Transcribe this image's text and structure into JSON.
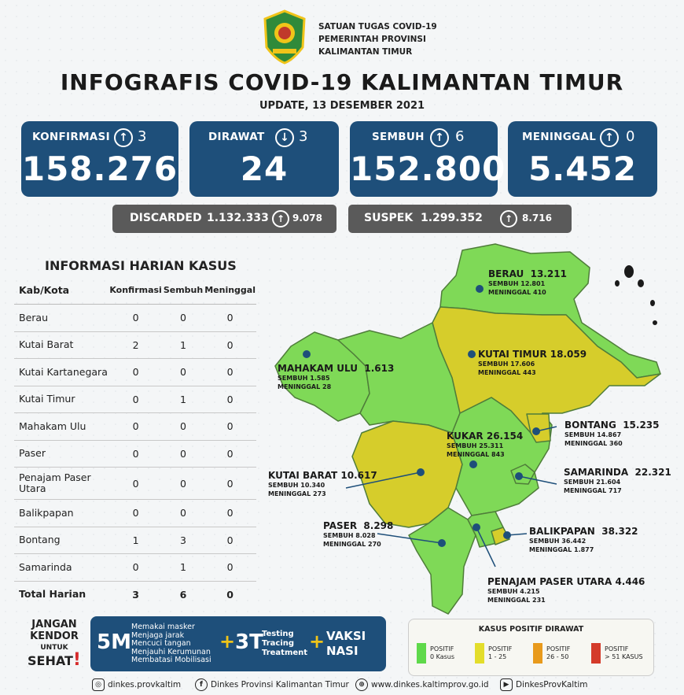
{
  "header": {
    "org_lines": [
      "SATUAN TUGAS COVID-19",
      "PEMERINTAH PROVINSI",
      "KALIMANTAN TIMUR"
    ],
    "title": "INFOGRAFIS COVID-19 KALIMANTAN TIMUR",
    "update": "UPDATE, 13 DESEMBER 2021"
  },
  "stats": [
    {
      "label": "KONFIRMASI",
      "direction": "up",
      "change": "3",
      "value": "158.276"
    },
    {
      "label": "DIRAWAT",
      "direction": "down",
      "change": "3",
      "value": "24"
    },
    {
      "label": "SEMBUH",
      "direction": "up",
      "change": "6",
      "value": "152.800"
    },
    {
      "label": "MENINGGAL",
      "direction": "up",
      "change": "0",
      "value": "5.452"
    }
  ],
  "discarded": {
    "label": "DISCARDED",
    "value": "1.132.333",
    "change": "9.078"
  },
  "suspek": {
    "label": "SUSPEK",
    "value": "1.299.352",
    "change": "8.716"
  },
  "table": {
    "title": "INFORMASI HARIAN KASUS",
    "headers": [
      "Kab/Kota",
      "Konfirmasi",
      "Sembuh",
      "Meninggal"
    ],
    "rows": [
      [
        "Berau",
        "0",
        "0",
        "0"
      ],
      [
        "Kutai Barat",
        "2",
        "1",
        "0"
      ],
      [
        "Kutai Kartanegara",
        "0",
        "0",
        "0"
      ],
      [
        "Kutai Timur",
        "0",
        "1",
        "0"
      ],
      [
        "Mahakam Ulu",
        "0",
        "0",
        "0"
      ],
      [
        "Paser",
        "0",
        "0",
        "0"
      ],
      [
        "Penajam Paser Utara",
        "0",
        "0",
        "0"
      ],
      [
        "Balikpapan",
        "0",
        "0",
        "0"
      ],
      [
        "Bontang",
        "1",
        "3",
        "0"
      ],
      [
        "Samarinda",
        "0",
        "1",
        "0"
      ]
    ],
    "total": [
      "Total Harian",
      "3",
      "6",
      "0"
    ]
  },
  "map": {
    "regions": [
      {
        "name": "BERAU",
        "total": "13.211",
        "sembuh": "SEMBUH 12.801",
        "meninggal": "MENINGGAL 410",
        "status": "green"
      },
      {
        "name": "KUTAI TIMUR",
        "total": "18.059",
        "sembuh": "SEMBUH 17.606",
        "meninggal": "MENINGGAL 443",
        "status": "yellow"
      },
      {
        "name": "MAHAKAM ULU",
        "total": "1.613",
        "sembuh": "SEMBUH 1.585",
        "meninggal": "MENINGGAL 28",
        "status": "green"
      },
      {
        "name": "BONTANG",
        "total": "15.235",
        "sembuh": "SEMBUH 14.867",
        "meninggal": "MENINGGAL 360",
        "status": "yellow"
      },
      {
        "name": "KUKAR",
        "total": "26.154",
        "sembuh": "SEMBUH 25.311",
        "meninggal": "MENINGGAL 843",
        "status": "green"
      },
      {
        "name": "SAMARINDA",
        "total": "22.321",
        "sembuh": "SEMBUH 21.604",
        "meninggal": "MENINGGAL 717",
        "status": "green"
      },
      {
        "name": "KUTAI BARAT",
        "total": "10.617",
        "sembuh": "SEMBUH 10.340",
        "meninggal": "MENINGGAL 273",
        "status": "yellow"
      },
      {
        "name": "PASER",
        "total": "8.298",
        "sembuh": "SEMBUH 8.028",
        "meninggal": "MENINGGAL 270",
        "status": "green"
      },
      {
        "name": "BALIKPAPAN",
        "total": "38.322",
        "sembuh": "SEMBUH 36.442",
        "meninggal": "MENINGGAL 1.877",
        "status": "yellow"
      },
      {
        "name": "PENAJAM PASER UTARA",
        "total": "4.446",
        "sembuh": "SEMBUH 4.215",
        "meninggal": "MENINGGAL 231",
        "status": "green"
      }
    ],
    "colors": {
      "green": "#7fd957",
      "yellow": "#d6cd2b",
      "orange": "#e89a1c",
      "red": "#d43b2a",
      "border": "#5a8a3a"
    }
  },
  "campaign": {
    "jangan": [
      "JANGAN",
      "KENDOR",
      "UNTUK",
      "SEHAT"
    ],
    "five_m": "5M",
    "five_m_items": [
      "Memakai masker",
      "Menjaga jarak",
      "Mencuci tangan",
      "Menjauhi Kerumunan",
      "Membatasi Mobilisasi"
    ],
    "plus": "+",
    "three_t": "3T",
    "three_t_items": [
      "Testing",
      "Tracing",
      "Treatment"
    ],
    "vaksi": [
      "VAKSI",
      "NASI"
    ]
  },
  "legend": {
    "title": "KASUS POSITIF DIRAWAT",
    "items": [
      {
        "label1": "POSITIF",
        "label2": "0 Kasus",
        "color": "#5fd94a"
      },
      {
        "label1": "POSITIF",
        "label2": "1 - 25",
        "color": "#e3dd2b"
      },
      {
        "label1": "POSITIF",
        "label2": "26 - 50",
        "color": "#e89a1c"
      },
      {
        "label1": "POSITIF",
        "label2": "> 51 KASUS",
        "color": "#d43b2a"
      }
    ]
  },
  "footer": {
    "instagram": "dinkes.provkaltim",
    "facebook": "Dinkes Provinsi Kalimantan Timur",
    "website": "www.dinkes.kaltimprov.go.id",
    "youtube": "DinkesProvKaltim"
  }
}
